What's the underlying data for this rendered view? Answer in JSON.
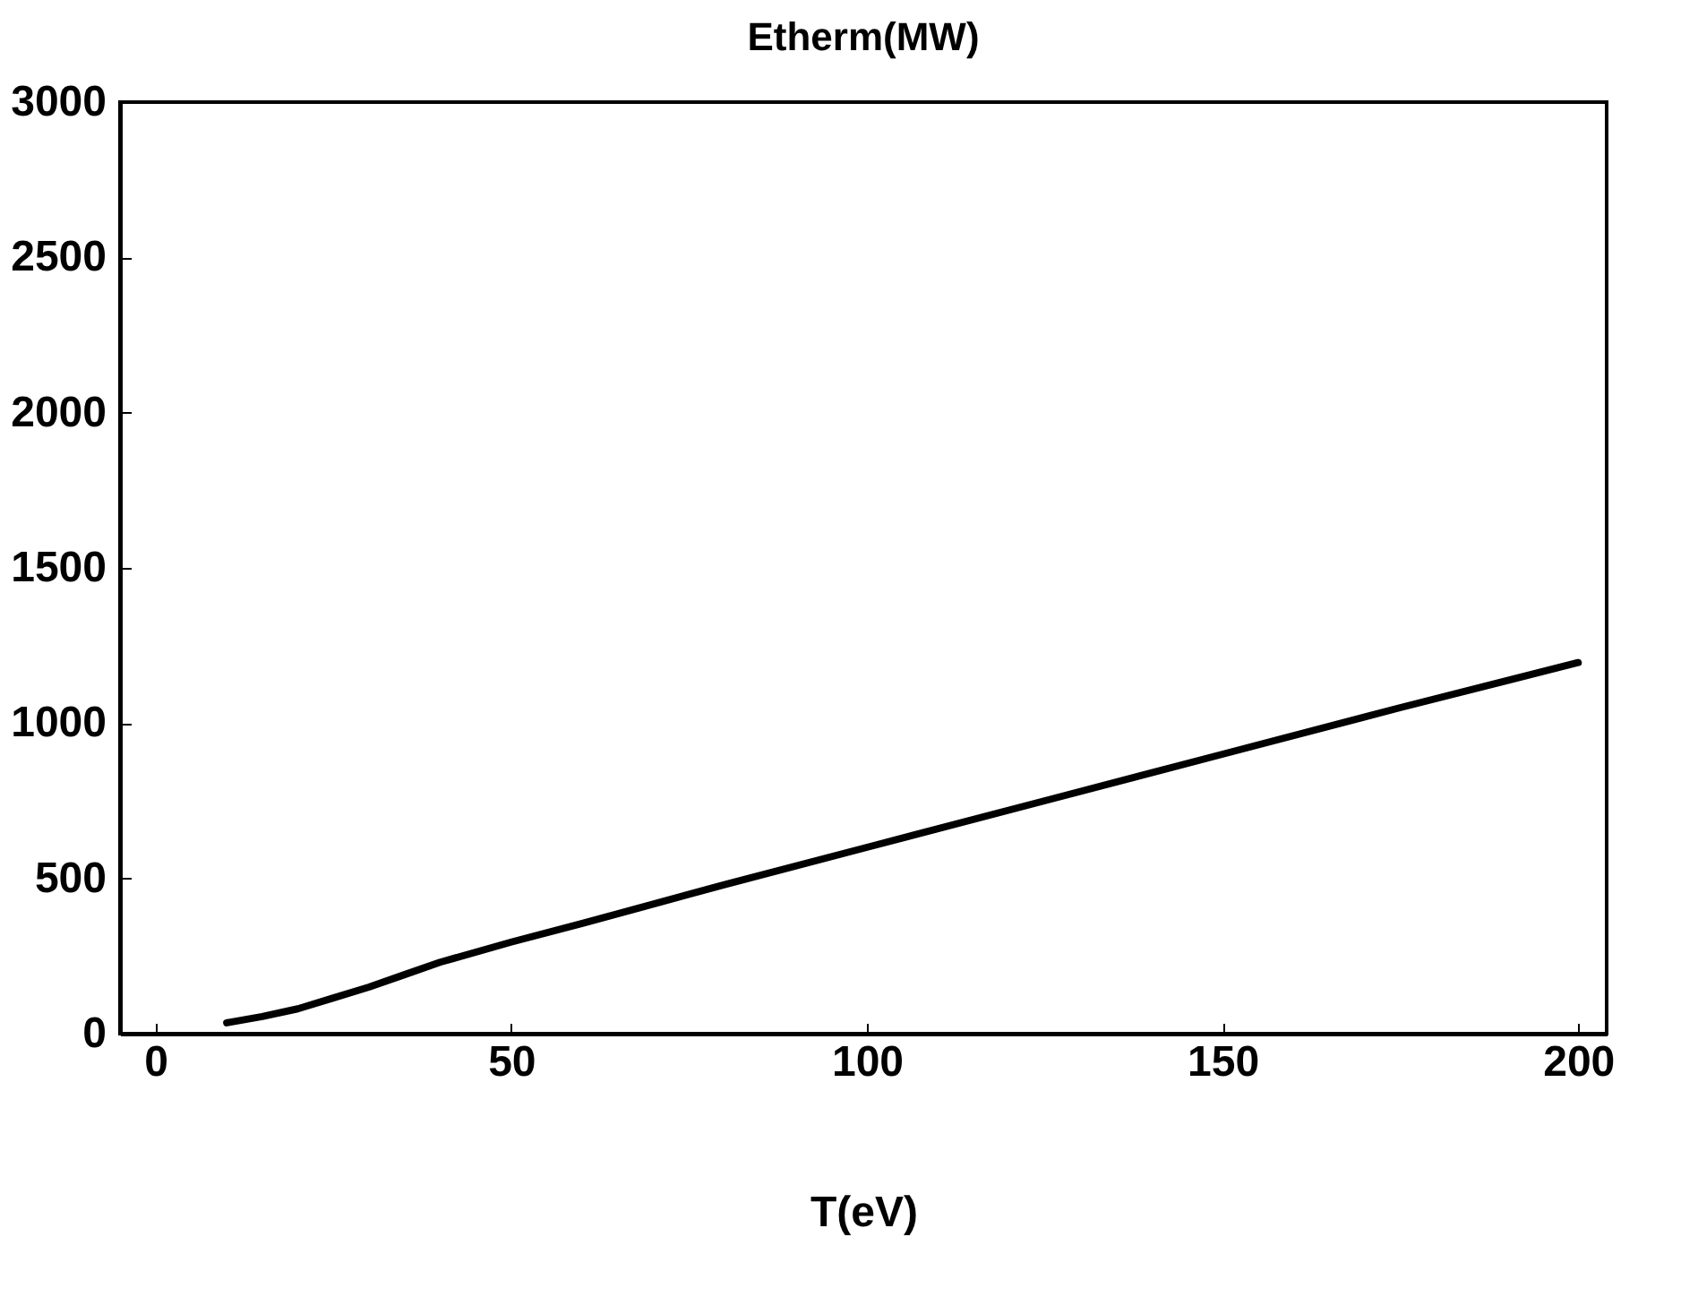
{
  "chart_data": {
    "type": "line",
    "title": "Etherm(MW)",
    "xlabel": "T(eV)",
    "x": [
      10,
      15,
      20,
      25,
      30,
      35,
      40,
      50,
      60,
      80,
      100,
      125,
      150,
      175,
      200
    ],
    "series": [
      {
        "color": "#000000",
        "values": [
          35,
          55,
          80,
          115,
          150,
          190,
          230,
          295,
          355,
          480,
          600,
          750,
          900,
          1050,
          1195
        ]
      }
    ],
    "xlim": [
      -5,
      204
    ],
    "xticks": [
      0,
      50,
      100,
      150,
      200
    ],
    "ylim": [
      0,
      3000
    ],
    "yticks": [
      0,
      500,
      1000,
      1500,
      2000,
      2500,
      3000
    ],
    "grid": false
  }
}
